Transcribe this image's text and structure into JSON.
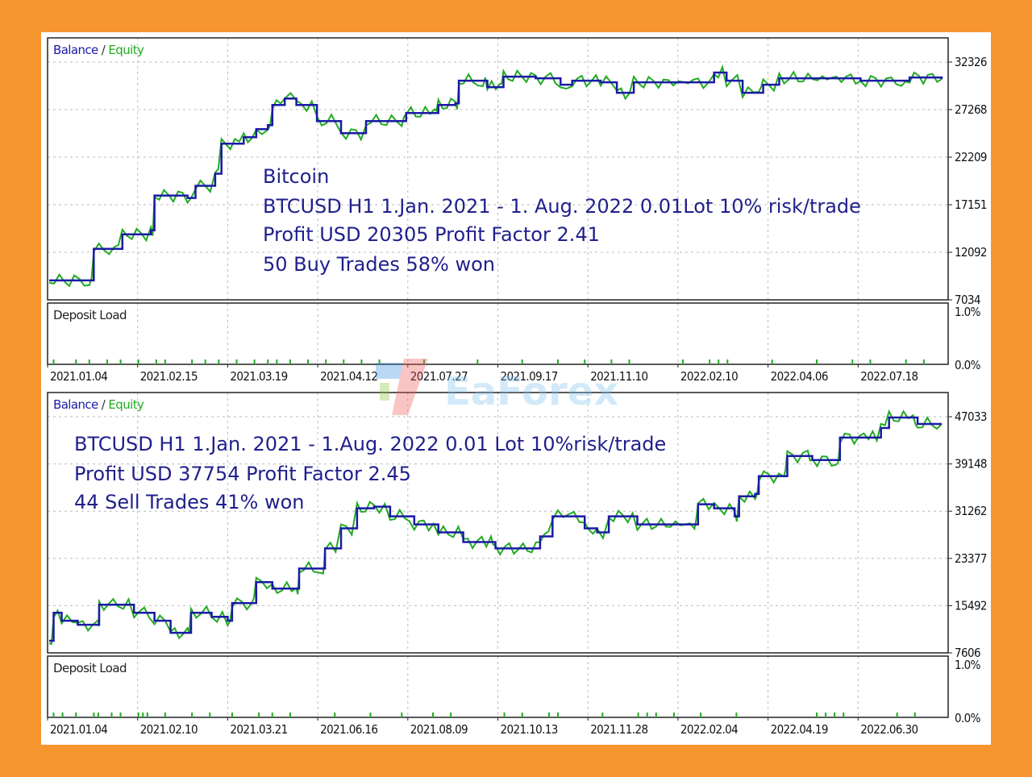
{
  "watermark": {
    "text": "EaForex"
  },
  "colors": {
    "balance": "#1A1AA6",
    "equity": "#22AA22",
    "background": "#F7952F"
  },
  "chart_data": [
    {
      "type": "line",
      "title": "Balance / Equity",
      "legend": {
        "balance": "Balance",
        "sep": " / ",
        "equity": "Equity"
      },
      "annotation": [
        "Bitcoin",
        "BTCUSD H1 1.Jan. 2021 - 1. Aug. 2022  0.01Lot  10% risk/trade",
        "Profit USD 20305  Profit Factor 2.41",
        "50 Buy Trades  58% won"
      ],
      "ylim": [
        7034,
        32326
      ],
      "yticks": [
        "32326",
        "27268",
        "22209",
        "17151",
        "12092",
        "7034"
      ],
      "xticks": [
        "2021.01.04",
        "2021.02.15",
        "2021.03.19",
        "2021.04.12",
        "2021.07.27",
        "2021.09.17",
        "2021.11.10",
        "2022.02.10",
        "2022.04.06",
        "2022.07.18"
      ],
      "x_unit": "percent of test period",
      "series": [
        {
          "name": "Balance",
          "x": [
            0,
            4.5,
            5,
            7.3,
            8.2,
            11.4,
            11.8,
            15.5,
            16.4,
            18.6,
            19.3,
            21.8,
            23.2,
            24.5,
            25,
            26.4,
            27.7,
            30,
            32.7,
            35.5,
            39.5,
            40,
            43.2,
            43.6,
            45.5,
            45.9,
            48.6,
            49.1,
            50.5,
            50.9,
            54.5,
            57.3,
            58.6,
            61.8,
            63.6,
            65.5,
            72.7,
            74.5,
            75.9,
            77.7,
            79.5,
            80,
            81.8,
            90.9,
            95.5,
            96.4,
            100
          ],
          "y": [
            9099,
            9099,
            12454,
            12454,
            14002,
            14433,
            18132,
            17873,
            19164,
            20454,
            23638,
            24326,
            25186,
            25616,
            27767,
            28455,
            27767,
            26047,
            24756,
            26047,
            26047,
            26907,
            26907,
            27767,
            27939,
            30348,
            30348,
            29660,
            29660,
            30778,
            30606,
            29918,
            30348,
            30176,
            29057,
            30176,
            30176,
            31208,
            30348,
            29057,
            29057,
            29918,
            30606,
            30348,
            30348,
            30692,
            30520
          ]
        }
      ],
      "deposit_load": {
        "label": "Deposit Load",
        "yticks": [
          "1.0%",
          "0.0%"
        ],
        "trade_marks": [
          0.5,
          3,
          4.5,
          6.5,
          8,
          10,
          12,
          13,
          16,
          17.5,
          19,
          21,
          23,
          24.5,
          25.5,
          27,
          29,
          31,
          33,
          35,
          37,
          42,
          48,
          53,
          57,
          60,
          63,
          65,
          71,
          74,
          75,
          76,
          81,
          86,
          90,
          92,
          96,
          98
        ]
      }
    },
    {
      "type": "line",
      "title": "Balance / Equity",
      "legend": {
        "balance": "Balance",
        "sep": " / ",
        "equity": "Equity"
      },
      "annotation": [
        "BTCUSD H1  1.Jan. 2021 - 1.Aug. 2022  0.01 Lot  10%risk/trade",
        "Profit USD 37754  Profit Factor 2.45",
        "44 Sell Trades  41% won"
      ],
      "ylim": [
        7606,
        47033
      ],
      "yticks": [
        "47033",
        "39148",
        "31262",
        "23377",
        "15492",
        "7606"
      ],
      "xticks": [
        "2021.01.04",
        "2021.02.10",
        "2021.03.21",
        "2021.06.16",
        "2021.08.09",
        "2021.10.13",
        "2021.11.28",
        "2022.02.04",
        "2022.04.19",
        "2022.06.30"
      ],
      "x_unit": "percent of test period",
      "series": [
        {
          "name": "Balance",
          "x": [
            0,
            0.5,
            1.4,
            3.2,
            5.5,
            5.6,
            7.7,
            9.5,
            11.8,
            13.6,
            15.5,
            15.9,
            18.2,
            20,
            20.5,
            22.7,
            23.2,
            25,
            27.7,
            28,
            30.7,
            30.9,
            32.7,
            34.5,
            36.4,
            38.2,
            40.9,
            43.6,
            46.4,
            49.5,
            50,
            53.6,
            55,
            56.4,
            58.2,
            60,
            61.4,
            62.7,
            65.9,
            72.3,
            72.7,
            74.5,
            76.8,
            77.3,
            79.1,
            79.5,
            82.3,
            82.7,
            85,
            85.5,
            88.2,
            88.6,
            91.8,
            93.2,
            94.1,
            96.8,
            97.3,
            100
          ],
          "y": [
            9618,
            14311,
            12970,
            12300,
            12300,
            15652,
            15652,
            14311,
            12970,
            10959,
            10959,
            14311,
            13641,
            12970,
            15920,
            15920,
            19407,
            18334,
            18334,
            21687,
            21687,
            25039,
            28392,
            31744,
            32012,
            30403,
            29062,
            27721,
            26112,
            26112,
            25039,
            25039,
            27051,
            30403,
            30403,
            28392,
            27721,
            30403,
            29062,
            29062,
            32415,
            31744,
            30403,
            33756,
            34158,
            37108,
            37108,
            40461,
            40461,
            39790,
            39790,
            43545,
            43545,
            45154,
            46897,
            46897,
            45824,
            45824
          ]
        }
      ],
      "deposit_load": {
        "label": "Deposit Load",
        "yticks": [
          "1.0%",
          "0.0%"
        ],
        "trade_marks": [
          0.5,
          1.5,
          3,
          5,
          5.5,
          7,
          8,
          10,
          10.5,
          11,
          13,
          16,
          18,
          20.5,
          23.5,
          25,
          27,
          32,
          36,
          39.5,
          43,
          45,
          51,
          53,
          56,
          57,
          62,
          66,
          67,
          68,
          70,
          73,
          77,
          86,
          87,
          88,
          89,
          95,
          97
        ]
      }
    }
  ]
}
